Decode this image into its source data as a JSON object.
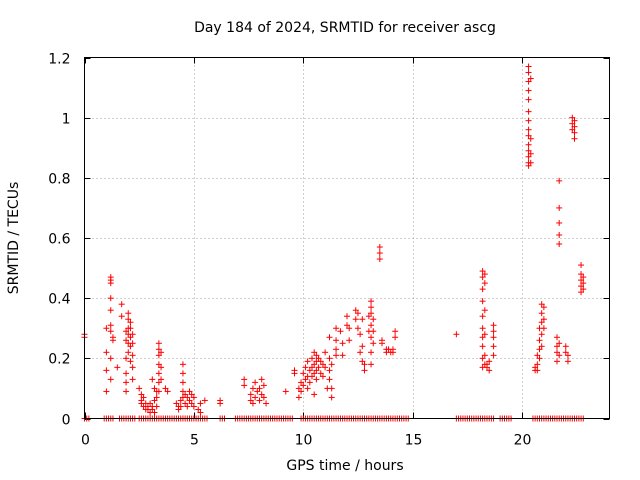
{
  "chart_data": {
    "type": "scatter",
    "title": "Day 184 of 2024, SRMTID for receiver ascg",
    "xlabel": "GPS time / hours",
    "ylabel": "SRMTID / TECUs",
    "xlim": [
      0,
      24
    ],
    "ylim": [
      0,
      1.2
    ],
    "xticks": [
      0,
      5,
      10,
      15,
      20
    ],
    "yticks": [
      0,
      0.2,
      0.4,
      0.6,
      0.8,
      1.0,
      1.2
    ],
    "xtick_labels": [
      "0",
      "5",
      "10",
      "15",
      "20"
    ],
    "ytick_labels": [
      "0",
      "0.2",
      "0.4",
      "0.6",
      "0.8",
      "1",
      "1.2"
    ],
    "grid": true,
    "color": "#ff0000",
    "marker": "+",
    "series": [
      {
        "name": "SRMTID",
        "points": [
          [
            0.0,
            0.28
          ],
          [
            0.0,
            0.27
          ],
          [
            1.0,
            0.22
          ],
          [
            1.0,
            0.3
          ],
          [
            1.0,
            0.16
          ],
          [
            1.0,
            0.09
          ],
          [
            1.2,
            0.47
          ],
          [
            1.2,
            0.46
          ],
          [
            1.2,
            0.45
          ],
          [
            1.2,
            0.4
          ],
          [
            1.2,
            0.36
          ],
          [
            1.2,
            0.31
          ],
          [
            1.2,
            0.29
          ],
          [
            1.3,
            0.27
          ],
          [
            1.3,
            0.26
          ],
          [
            1.2,
            0.2
          ],
          [
            1.2,
            0.13
          ],
          [
            1.5,
            0.17
          ],
          [
            1.7,
            0.38
          ],
          [
            1.7,
            0.34
          ],
          [
            1.9,
            0.29
          ],
          [
            1.9,
            0.26
          ],
          [
            1.9,
            0.2
          ],
          [
            1.9,
            0.15
          ],
          [
            1.9,
            0.12
          ],
          [
            1.9,
            0.09
          ],
          [
            2.0,
            0.35
          ],
          [
            2.0,
            0.33
          ],
          [
            2.0,
            0.3
          ],
          [
            2.0,
            0.28
          ],
          [
            2.0,
            0.25
          ],
          [
            2.0,
            0.22
          ],
          [
            2.1,
            0.32
          ],
          [
            2.1,
            0.3
          ],
          [
            2.1,
            0.27
          ],
          [
            2.1,
            0.24
          ],
          [
            2.1,
            0.19
          ],
          [
            2.2,
            0.28
          ],
          [
            2.2,
            0.25
          ],
          [
            2.2,
            0.21
          ],
          [
            2.2,
            0.17
          ],
          [
            2.2,
            0.13
          ],
          [
            2.5,
            0.1
          ],
          [
            2.6,
            0.08
          ],
          [
            2.6,
            0.06
          ],
          [
            2.6,
            0.05
          ],
          [
            2.7,
            0.07
          ],
          [
            2.7,
            0.04
          ],
          [
            2.8,
            0.05
          ],
          [
            2.8,
            0.03
          ],
          [
            2.9,
            0.04
          ],
          [
            2.9,
            0.03
          ],
          [
            3.0,
            0.02
          ],
          [
            3.0,
            0.05
          ],
          [
            3.1,
            0.03
          ],
          [
            3.1,
            0.04
          ],
          [
            3.2,
            0.02
          ],
          [
            3.2,
            0.06
          ],
          [
            3.3,
            0.04
          ],
          [
            3.3,
            0.07
          ],
          [
            3.1,
            0.13
          ],
          [
            3.2,
            0.1
          ],
          [
            3.3,
            0.09
          ],
          [
            3.4,
            0.25
          ],
          [
            3.4,
            0.23
          ],
          [
            3.4,
            0.21
          ],
          [
            3.4,
            0.18
          ],
          [
            3.4,
            0.15
          ],
          [
            3.4,
            0.12
          ],
          [
            3.4,
            0.09
          ],
          [
            3.5,
            0.22
          ],
          [
            3.5,
            0.17
          ],
          [
            3.5,
            0.13
          ],
          [
            3.7,
            0.1
          ],
          [
            3.8,
            0.09
          ],
          [
            4.2,
            0.05
          ],
          [
            4.3,
            0.04
          ],
          [
            4.3,
            0.03
          ],
          [
            4.4,
            0.04
          ],
          [
            4.4,
            0.06
          ],
          [
            4.5,
            0.18
          ],
          [
            4.5,
            0.15
          ],
          [
            4.5,
            0.12
          ],
          [
            4.5,
            0.09
          ],
          [
            4.5,
            0.07
          ],
          [
            4.6,
            0.05
          ],
          [
            4.6,
            0.08
          ],
          [
            4.7,
            0.04
          ],
          [
            4.7,
            0.07
          ],
          [
            4.8,
            0.06
          ],
          [
            4.8,
            0.09
          ],
          [
            4.9,
            0.05
          ],
          [
            4.9,
            0.08
          ],
          [
            5.0,
            0.07
          ],
          [
            5.0,
            0.04
          ],
          [
            5.2,
            0.03
          ],
          [
            5.3,
            0.05
          ],
          [
            5.3,
            0.02
          ],
          [
            5.5,
            0.06
          ],
          [
            6.2,
            0.06
          ],
          [
            6.2,
            0.05
          ],
          [
            7.3,
            0.13
          ],
          [
            7.3,
            0.11
          ],
          [
            7.6,
            0.08
          ],
          [
            7.6,
            0.06
          ],
          [
            7.7,
            0.1
          ],
          [
            7.7,
            0.05
          ],
          [
            7.8,
            0.12
          ],
          [
            7.8,
            0.07
          ],
          [
            7.9,
            0.09
          ],
          [
            8.0,
            0.06
          ],
          [
            8.0,
            0.1
          ],
          [
            8.1,
            0.13
          ],
          [
            8.1,
            0.08
          ],
          [
            8.2,
            0.11
          ],
          [
            8.2,
            0.07
          ],
          [
            8.3,
            0.05
          ],
          [
            9.2,
            0.09
          ],
          [
            9.6,
            0.16
          ],
          [
            9.6,
            0.15
          ],
          [
            9.8,
            0.1
          ],
          [
            9.8,
            0.07
          ],
          [
            9.9,
            0.12
          ],
          [
            9.9,
            0.09
          ],
          [
            10.0,
            0.15
          ],
          [
            10.0,
            0.11
          ],
          [
            10.1,
            0.17
          ],
          [
            10.1,
            0.13
          ],
          [
            10.2,
            0.19
          ],
          [
            10.2,
            0.14
          ],
          [
            10.2,
            0.1
          ],
          [
            10.3,
            0.16
          ],
          [
            10.3,
            0.12
          ],
          [
            10.4,
            0.2
          ],
          [
            10.4,
            0.17
          ],
          [
            10.4,
            0.14
          ],
          [
            10.5,
            0.22
          ],
          [
            10.5,
            0.18
          ],
          [
            10.5,
            0.15
          ],
          [
            10.5,
            0.08
          ],
          [
            10.6,
            0.21
          ],
          [
            10.6,
            0.19
          ],
          [
            10.6,
            0.16
          ],
          [
            10.6,
            0.13
          ],
          [
            10.7,
            0.2
          ],
          [
            10.7,
            0.17
          ],
          [
            10.8,
            0.19
          ],
          [
            10.8,
            0.15
          ],
          [
            10.9,
            0.18
          ],
          [
            10.9,
            0.14
          ],
          [
            11.0,
            0.22
          ],
          [
            11.0,
            0.17
          ],
          [
            11.1,
            0.1
          ],
          [
            11.2,
            0.27
          ],
          [
            11.2,
            0.2
          ],
          [
            11.2,
            0.16
          ],
          [
            11.2,
            0.13
          ],
          [
            11.3,
            0.18
          ],
          [
            11.3,
            0.1
          ],
          [
            11.3,
            0.07
          ],
          [
            11.5,
            0.3
          ],
          [
            11.5,
            0.26
          ],
          [
            11.5,
            0.23
          ],
          [
            11.5,
            0.21
          ],
          [
            11.7,
            0.29
          ],
          [
            11.8,
            0.25
          ],
          [
            11.8,
            0.21
          ],
          [
            12.0,
            0.34
          ],
          [
            12.0,
            0.31
          ],
          [
            12.1,
            0.3
          ],
          [
            12.1,
            0.26
          ],
          [
            12.4,
            0.36
          ],
          [
            12.4,
            0.33
          ],
          [
            12.5,
            0.35
          ],
          [
            12.5,
            0.3
          ],
          [
            12.6,
            0.28
          ],
          [
            12.6,
            0.22
          ],
          [
            12.7,
            0.33
          ],
          [
            12.7,
            0.24
          ],
          [
            12.7,
            0.19
          ],
          [
            12.8,
            0.18
          ],
          [
            12.8,
            0.16
          ],
          [
            13.0,
            0.34
          ],
          [
            13.0,
            0.29
          ],
          [
            13.1,
            0.39
          ],
          [
            13.1,
            0.37
          ],
          [
            13.1,
            0.35
          ],
          [
            13.1,
            0.31
          ],
          [
            13.1,
            0.27
          ],
          [
            13.1,
            0.22
          ],
          [
            13.1,
            0.18
          ],
          [
            13.2,
            0.33
          ],
          [
            13.2,
            0.29
          ],
          [
            13.2,
            0.25
          ],
          [
            13.5,
            0.57
          ],
          [
            13.5,
            0.55
          ],
          [
            13.5,
            0.53
          ],
          [
            13.6,
            0.26
          ],
          [
            13.6,
            0.25
          ],
          [
            13.8,
            0.23
          ],
          [
            13.8,
            0.22
          ],
          [
            13.9,
            0.23
          ],
          [
            14.0,
            0.22
          ],
          [
            14.1,
            0.23
          ],
          [
            14.1,
            0.22
          ],
          [
            14.2,
            0.29
          ],
          [
            14.2,
            0.27
          ],
          [
            17.0,
            0.28
          ],
          [
            18.2,
            0.49
          ],
          [
            18.2,
            0.47
          ],
          [
            18.2,
            0.43
          ],
          [
            18.2,
            0.39
          ],
          [
            18.2,
            0.34
          ],
          [
            18.2,
            0.3
          ],
          [
            18.2,
            0.27
          ],
          [
            18.2,
            0.24
          ],
          [
            18.2,
            0.2
          ],
          [
            18.2,
            0.17
          ],
          [
            18.3,
            0.48
          ],
          [
            18.3,
            0.45
          ],
          [
            18.3,
            0.36
          ],
          [
            18.3,
            0.28
          ],
          [
            18.3,
            0.21
          ],
          [
            18.3,
            0.18
          ],
          [
            18.4,
            0.18
          ],
          [
            18.4,
            0.17
          ],
          [
            18.5,
            0.16
          ],
          [
            18.5,
            0.19
          ],
          [
            18.7,
            0.31
          ],
          [
            18.7,
            0.29
          ],
          [
            18.7,
            0.27
          ],
          [
            18.7,
            0.24
          ],
          [
            18.7,
            0.21
          ],
          [
            20.3,
            1.17
          ],
          [
            20.3,
            1.15
          ],
          [
            20.3,
            1.12
          ],
          [
            20.3,
            1.09
          ],
          [
            20.3,
            1.06
          ],
          [
            20.3,
            1.02
          ],
          [
            20.3,
            0.99
          ],
          [
            20.3,
            0.96
          ],
          [
            20.3,
            0.94
          ],
          [
            20.3,
            0.91
          ],
          [
            20.3,
            0.89
          ],
          [
            20.3,
            0.87
          ],
          [
            20.3,
            0.85
          ],
          [
            20.3,
            0.84
          ],
          [
            20.4,
            1.13
          ],
          [
            20.4,
            0.93
          ],
          [
            20.4,
            0.88
          ],
          [
            20.4,
            0.85
          ],
          [
            20.6,
            0.17
          ],
          [
            20.6,
            0.16
          ],
          [
            20.7,
            0.21
          ],
          [
            20.7,
            0.18
          ],
          [
            20.7,
            0.16
          ],
          [
            20.8,
            0.3
          ],
          [
            20.8,
            0.26
          ],
          [
            20.8,
            0.23
          ],
          [
            20.8,
            0.2
          ],
          [
            20.9,
            0.38
          ],
          [
            20.9,
            0.35
          ],
          [
            20.9,
            0.32
          ],
          [
            20.9,
            0.28
          ],
          [
            20.9,
            0.24
          ],
          [
            21.0,
            0.37
          ],
          [
            21.0,
            0.33
          ],
          [
            21.0,
            0.3
          ],
          [
            21.6,
            0.27
          ],
          [
            21.6,
            0.24
          ],
          [
            21.6,
            0.22
          ],
          [
            21.6,
            0.19
          ],
          [
            21.7,
            0.25
          ],
          [
            21.7,
            0.21
          ],
          [
            21.7,
            0.79
          ],
          [
            21.7,
            0.7
          ],
          [
            21.7,
            0.65
          ],
          [
            21.7,
            0.61
          ],
          [
            21.7,
            0.58
          ],
          [
            22.0,
            0.24
          ],
          [
            22.0,
            0.22
          ],
          [
            22.1,
            0.21
          ],
          [
            22.1,
            0.19
          ],
          [
            22.3,
            1.0
          ],
          [
            22.3,
            0.98
          ],
          [
            22.3,
            0.96
          ],
          [
            22.4,
            0.99
          ],
          [
            22.4,
            0.97
          ],
          [
            22.4,
            0.95
          ],
          [
            22.4,
            0.93
          ],
          [
            22.7,
            0.51
          ],
          [
            22.7,
            0.48
          ],
          [
            22.7,
            0.46
          ],
          [
            22.7,
            0.44
          ],
          [
            22.7,
            0.42
          ],
          [
            22.8,
            0.47
          ],
          [
            22.8,
            0.45
          ],
          [
            22.8,
            0.43
          ]
        ]
      }
    ],
    "zero_segments": [
      [
        0.0,
        0.2
      ],
      [
        0.9,
        1.3
      ],
      [
        1.6,
        2.3
      ],
      [
        2.5,
        5.6
      ],
      [
        6.2,
        6.4
      ],
      [
        6.9,
        9.5
      ],
      [
        9.9,
        14.8
      ],
      [
        17.0,
        18.7
      ],
      [
        19.0,
        19.5
      ],
      [
        20.5,
        22.8
      ]
    ]
  }
}
